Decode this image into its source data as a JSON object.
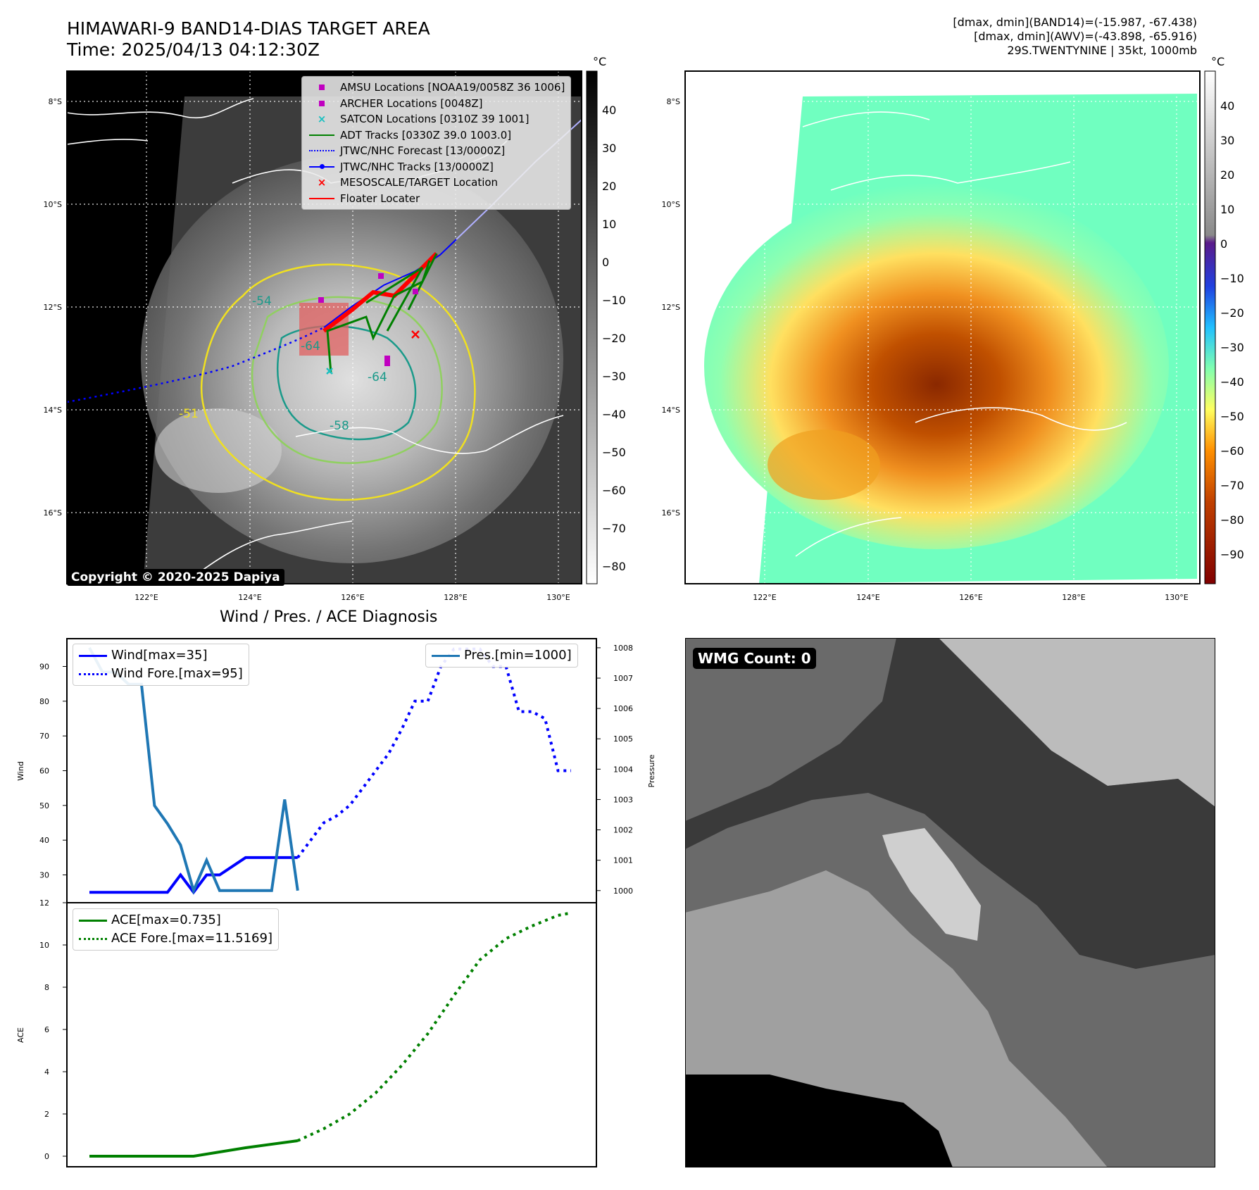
{
  "header": {
    "title_line1": "HIMAWARI-9 BAND14-DIAS TARGET AREA",
    "title_line2": "Time: 2025/04/13 04:12:30Z",
    "right_line1": "[dmax, dmin](BAND14)=(-15.987, -67.438)",
    "right_line2": "[dmax, dmin](AWV)=(-43.898, -65.916)",
    "right_line3": "29S.TWENTYNINE | 35kt, 1000mb"
  },
  "map_left": {
    "lat_labels": [
      "8°S",
      "10°S",
      "12°S",
      "14°S",
      "16°S"
    ],
    "lon_labels": [
      "122°E",
      "124°E",
      "126°E",
      "128°E",
      "130°E"
    ],
    "contour_labels": [
      "-54",
      "-64",
      "-64",
      "-51",
      "-58"
    ],
    "copyright": "Copyright © 2020-2025 Dapiya",
    "colorbar": {
      "unit": "°C",
      "ticks": [
        "40",
        "30",
        "20",
        "10",
        "0",
        "−10",
        "−20",
        "−30",
        "−40",
        "−50",
        "−60",
        "−70",
        "−80"
      ]
    },
    "legend": [
      {
        "label": "AMSU Locations [NOAA19/0058Z 36 1006]",
        "color": "#c000c0",
        "symbol": "square"
      },
      {
        "label": "ARCHER Locations [0048Z]",
        "color": "#c000c0",
        "symbol": "square"
      },
      {
        "label": "SATCON Locations [0310Z 39 1001]",
        "color": "#1ac0c0",
        "symbol": "x"
      },
      {
        "label": "ADT Tracks [0330Z 39.0 1003.0]",
        "color": "#008000",
        "symbol": "line"
      },
      {
        "label": "JTWC/NHC Forecast [13/0000Z]",
        "color": "#0000ff",
        "symbol": "dotted"
      },
      {
        "label": "JTWC/NHC Tracks [13/0000Z]",
        "color": "#0000ff",
        "symbol": "line-dot"
      },
      {
        "label": "MESOSCALE/TARGET Location",
        "color": "#ff0000",
        "symbol": "x"
      },
      {
        "label": "Floater Locater",
        "color": "#ff0000",
        "symbol": "line"
      }
    ]
  },
  "map_right": {
    "lat_labels": [
      "8°S",
      "10°S",
      "12°S",
      "14°S",
      "16°S"
    ],
    "lon_labels": [
      "122°E",
      "124°E",
      "126°E",
      "128°E",
      "130°E"
    ],
    "colorbar": {
      "unit": "°C",
      "ticks": [
        "40",
        "30",
        "20",
        "10",
        "0",
        "−10",
        "−20",
        "−30",
        "−40",
        "−50",
        "−60",
        "−70",
        "−80",
        "−90"
      ]
    }
  },
  "chart_data": [
    {
      "type": "line",
      "title": "Wind / Pres. / ACE Diagnosis",
      "ylabel": "Wind",
      "ylabel_right": "Pressure",
      "ylim": [
        22,
        98
      ],
      "ylim_right": [
        999.6,
        1008.3
      ],
      "yticks": [
        30,
        40,
        50,
        60,
        70,
        80,
        90
      ],
      "yticks_right": [
        1000,
        1001,
        1002,
        1003,
        1004,
        1005,
        1006,
        1007,
        1008
      ],
      "x": [
        0,
        1,
        2,
        3,
        4,
        5,
        6,
        7,
        8,
        9,
        10,
        11,
        12,
        13,
        14,
        15,
        16,
        17,
        18,
        19,
        20,
        21,
        22,
        23,
        24,
        25,
        26,
        27,
        28,
        29,
        30,
        31,
        32,
        33,
        34,
        35,
        36,
        37
      ],
      "series": [
        {
          "name": "Wind[max=35]",
          "color": "#0000ff",
          "style": "solid",
          "x": [
            0,
            4,
            6,
            7,
            8,
            9,
            10,
            12,
            13,
            16
          ],
          "values": [
            25,
            25,
            25,
            30,
            25,
            30,
            30,
            35,
            35,
            35
          ]
        },
        {
          "name": "Wind Fore.[max=95]",
          "color": "#0000ff",
          "style": "dotted",
          "x": [
            16,
            17,
            18,
            19,
            20,
            21,
            22,
            23,
            24,
            25,
            26,
            27,
            28,
            29,
            30,
            31,
            32,
            33,
            34,
            35,
            36,
            37
          ],
          "values": [
            35,
            40,
            45,
            47,
            50,
            55,
            60,
            65,
            72,
            80,
            80,
            90,
            95,
            95,
            95,
            90,
            90,
            77,
            77,
            75,
            60,
            60
          ]
        },
        {
          "name": "Pres.[min=1000]",
          "color": "#1f77b4",
          "style": "solid",
          "axis": "right",
          "x": [
            0,
            1,
            2,
            3,
            4,
            5,
            6,
            7,
            8,
            9,
            10,
            11,
            12,
            13,
            14,
            15,
            16
          ],
          "values": [
            1008,
            1007.2,
            1007.2,
            1006.8,
            1006.8,
            1002.8,
            1002.2,
            1001.5,
            1000,
            1001,
            1000,
            1000,
            1000,
            1000,
            1000,
            1003,
            1000
          ]
        }
      ]
    },
    {
      "type": "line",
      "ylabel": "ACE",
      "ylim": [
        -0.5,
        12
      ],
      "yticks": [
        0,
        2,
        4,
        6,
        8,
        10,
        12
      ],
      "series": [
        {
          "name": "ACE[max=0.735]",
          "color": "#008000",
          "style": "solid",
          "x": [
            0,
            8,
            12,
            16
          ],
          "values": [
            0,
            0,
            0.4,
            0.735
          ]
        },
        {
          "name": "ACE Fore.[max=11.5169]",
          "color": "#008000",
          "style": "dotted",
          "x": [
            16,
            18,
            20,
            22,
            24,
            26,
            28,
            30,
            32,
            34,
            36,
            37
          ],
          "values": [
            0.735,
            1.3,
            2.0,
            3.0,
            4.3,
            5.8,
            7.6,
            9.3,
            10.3,
            10.9,
            11.4,
            11.5169
          ]
        }
      ]
    }
  ],
  "legend_wind": [
    "Wind[max=35]",
    "Wind Fore.[max=95]"
  ],
  "legend_pres": [
    "Pres.[min=1000]"
  ],
  "legend_ace": [
    "ACE[max=0.735]",
    "ACE Fore.[max=11.5169]"
  ],
  "wmg": {
    "label": "WMG Count: 0"
  }
}
